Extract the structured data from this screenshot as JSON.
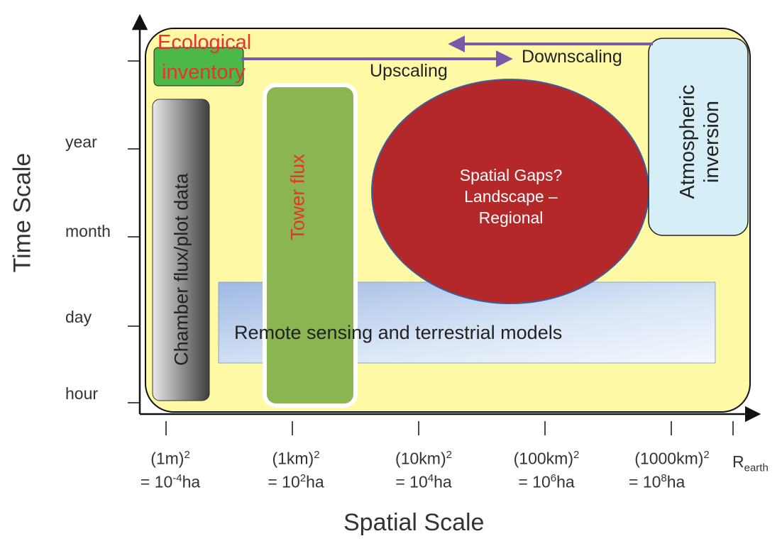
{
  "axes": {
    "x_title": "Spatial Scale",
    "y_title": "Time Scale",
    "y_ticks": [
      "hour",
      "day",
      "month",
      "year"
    ],
    "x_ticks": [
      {
        "top": "(1m)",
        "top_sup": "2",
        "bottom_pre": "= 10",
        "bottom_sup": "-4",
        "bottom_post": "ha"
      },
      {
        "top": "(1km)",
        "top_sup": "2",
        "bottom_pre": "= 10",
        "bottom_sup": "2",
        "bottom_post": "ha"
      },
      {
        "top": "(10km)",
        "top_sup": "2",
        "bottom_pre": "= 10",
        "bottom_sup": "4",
        "bottom_post": "ha"
      },
      {
        "top": "(100km)",
        "top_sup": "2",
        "bottom_pre": "= 10",
        "bottom_sup": "6",
        "bottom_post": "ha"
      },
      {
        "top": "(1000km)",
        "top_sup": "2",
        "bottom_pre": "= 10",
        "bottom_sup": "8",
        "bottom_post": "ha"
      }
    ],
    "r_earth": {
      "main": "R",
      "sub": "earth"
    }
  },
  "boxes": {
    "ecological": {
      "line1": "Ecological",
      "line2": "inventory"
    },
    "chamber": "Chamber flux/plot data",
    "tower": "Tower  flux",
    "remote": "Remote sensing and terrestrial models",
    "atmospheric": {
      "line1": "Atmospheric",
      "line2": "inversion"
    },
    "gaps": {
      "line1": "Spatial Gaps?",
      "line2": "Landscape –",
      "line3": "Regional"
    }
  },
  "arrows": {
    "upscaling": "Upscaling",
    "downscaling": "Downscaling"
  },
  "colors": {
    "background_region": "#fff9a6",
    "ecological_box": "#4cb848",
    "chamber_box": "#6b6b6b",
    "tower_box": "#8bb452",
    "remote_box": "#c5d7f0",
    "atmospheric_box": "#d6eef5",
    "gaps_circle": "#b5282a",
    "arrow": "#7a5aa8",
    "red_text": "#e8332a"
  }
}
